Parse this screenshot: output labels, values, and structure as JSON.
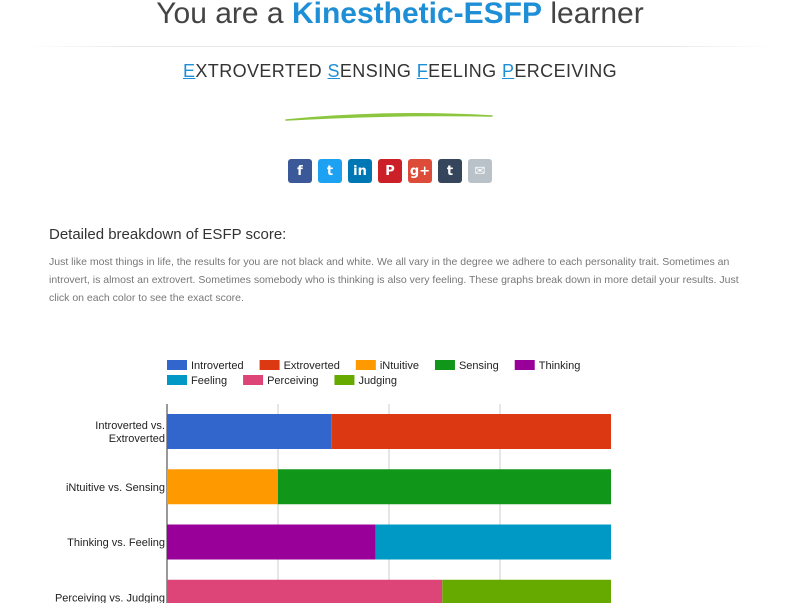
{
  "header": {
    "title_prefix": "You are a ",
    "title_type": "Kinesthetic-ESFP",
    "title_suffix": " learner",
    "subtitle_words": [
      {
        "initial": "E",
        "rest": "XTROVERTED"
      },
      {
        "initial": "S",
        "rest": "ENSING"
      },
      {
        "initial": "F",
        "rest": "EELING"
      },
      {
        "initial": "P",
        "rest": "ERCEIVING"
      }
    ]
  },
  "share": [
    {
      "icon": "facebook-icon",
      "glyph": "f",
      "color": "#3b5998"
    },
    {
      "icon": "twitter-icon",
      "glyph": "t",
      "color": "#1da1f2"
    },
    {
      "icon": "linkedin-icon",
      "glyph": "in",
      "color": "#0077b5"
    },
    {
      "icon": "pinterest-icon",
      "glyph": "P",
      "color": "#cb2027"
    },
    {
      "icon": "google-plus-icon",
      "glyph": "g+",
      "color": "#dd4b39"
    },
    {
      "icon": "tumblr-icon",
      "glyph": "t",
      "color": "#35465c"
    },
    {
      "icon": "email-icon",
      "glyph": "✉",
      "color": "#b9c2c8"
    }
  ],
  "breakdown": {
    "heading": "Detailed breakdown of ESFP score:",
    "intro": "Just like most things in life, the results for you are not black and white. We all vary in the degree we adhere to each personality trait. Sometimes an introvert, is almost an extrovert. Sometimes somebody who is thinking is also very feeling. These graphs break down in more detail your results. Just click on each color to see the exact score."
  },
  "chart_data": {
    "type": "bar",
    "orientation": "horizontal",
    "stacked": true,
    "categories": [
      "Introverted vs. Extroverted",
      "iNtuitive vs. Sensing",
      "Thinking vs. Feeling",
      "Perceiving vs. Judging"
    ],
    "category_lines": [
      [
        "Introverted vs.",
        "Extroverted"
      ],
      [
        "iNtuitive vs. Sensing"
      ],
      [
        "Thinking vs. Feeling"
      ],
      [
        "Perceiving vs. Judging"
      ]
    ],
    "xlim": [
      0,
      100
    ],
    "grid": true,
    "legend_position": "top",
    "series": [
      {
        "name": "Introverted",
        "color": "#3366cc",
        "values": [
          37,
          0,
          0,
          0
        ]
      },
      {
        "name": "Extroverted",
        "color": "#dc3912",
        "values": [
          63,
          0,
          0,
          0
        ]
      },
      {
        "name": "iNtuitive",
        "color": "#ff9900",
        "values": [
          0,
          25,
          0,
          0
        ]
      },
      {
        "name": "Sensing",
        "color": "#109618",
        "values": [
          0,
          75,
          0,
          0
        ]
      },
      {
        "name": "Thinking",
        "color": "#990099",
        "values": [
          0,
          0,
          47,
          0
        ]
      },
      {
        "name": "Feeling",
        "color": "#0099c6",
        "values": [
          0,
          0,
          53,
          0
        ]
      },
      {
        "name": "Perceiving",
        "color": "#dd4477",
        "values": [
          0,
          0,
          0,
          62
        ]
      },
      {
        "name": "Judging",
        "color": "#66aa00",
        "values": [
          0,
          0,
          0,
          38
        ]
      }
    ]
  }
}
